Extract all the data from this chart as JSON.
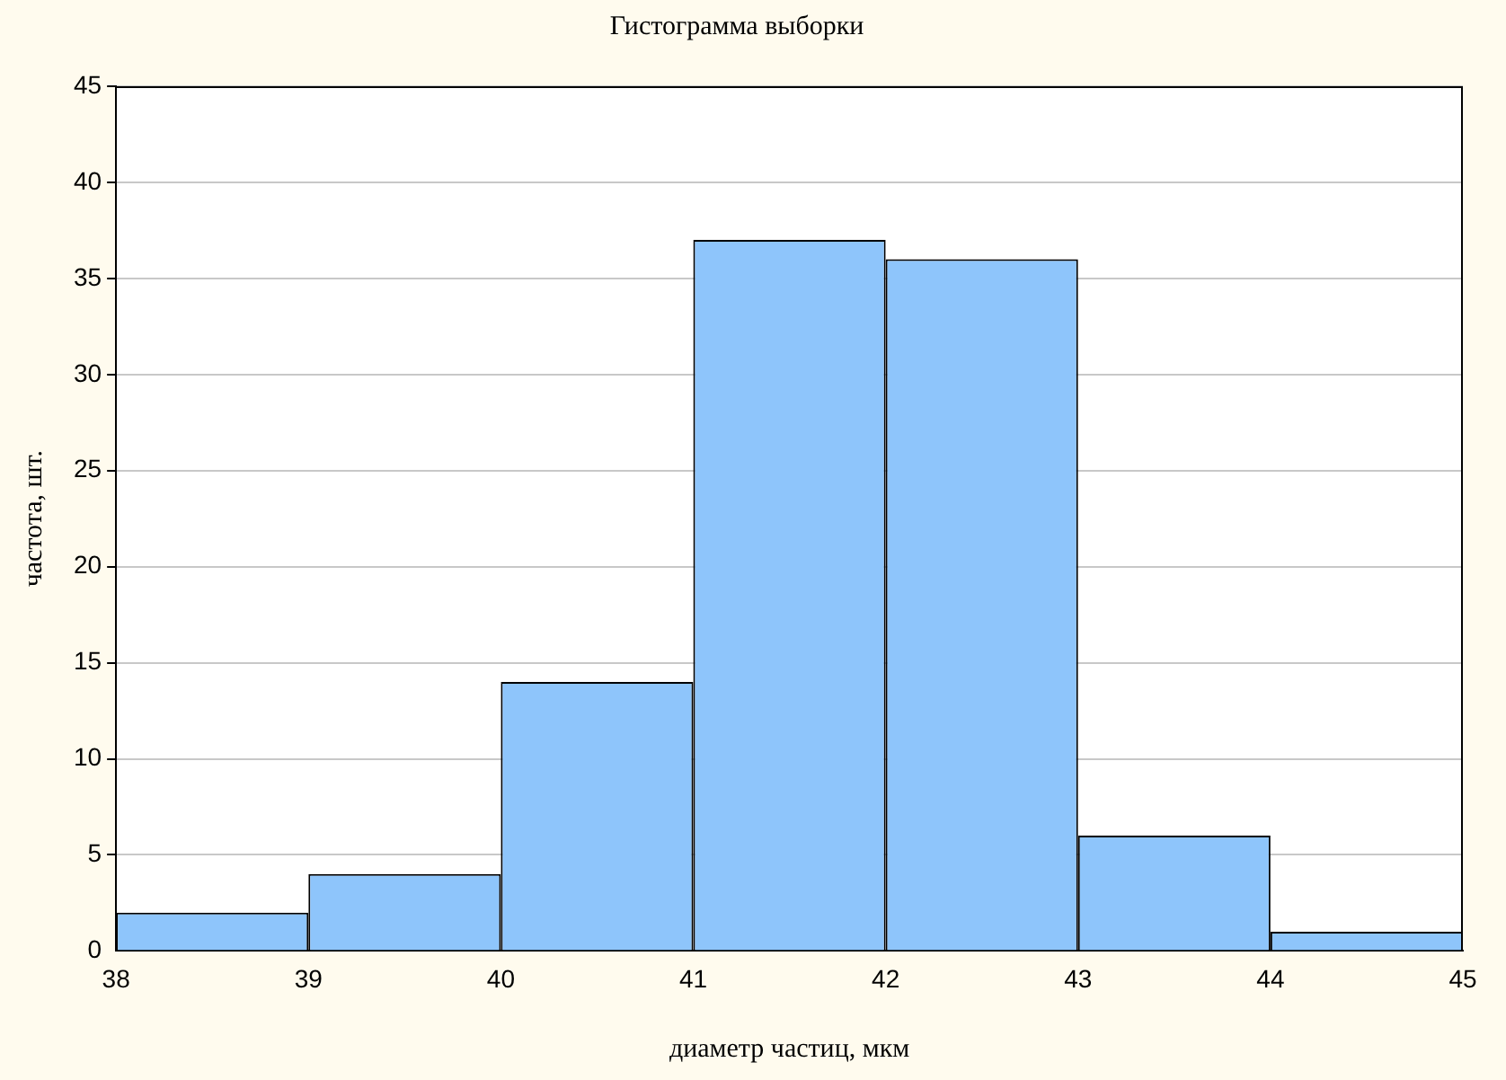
{
  "chart_data": {
    "type": "histogram",
    "title": "Гистограмма выборки",
    "xlabel": "диаметр частиц, мкм",
    "ylabel": "частота, шт.",
    "bins": [
      38,
      39,
      40,
      41,
      42,
      43,
      44,
      45
    ],
    "values": [
      2,
      4,
      14,
      37,
      36,
      6,
      1
    ],
    "color": "#8ec5fb",
    "xlim": [
      38,
      45
    ],
    "xticks": [
      38,
      39,
      40,
      41,
      42,
      43,
      44,
      45
    ],
    "ylim": [
      0,
      45
    ],
    "yticks": [
      0,
      5,
      10,
      15,
      20,
      25,
      30,
      35,
      40,
      45
    ],
    "grid": "y"
  }
}
